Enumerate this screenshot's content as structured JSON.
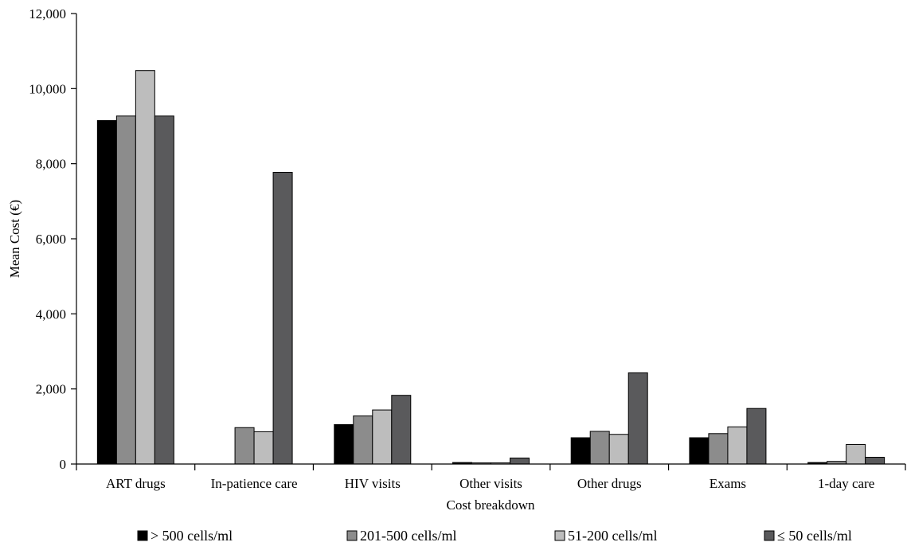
{
  "chart_data": {
    "type": "bar",
    "xlabel": "Cost breakdown",
    "ylabel": "Mean Cost (€)",
    "ylim": [
      0,
      12000
    ],
    "yticks": [
      0,
      2000,
      4000,
      6000,
      8000,
      10000,
      12000
    ],
    "ytick_labels": [
      "0",
      "2,000",
      "4,000",
      "6,000",
      "8,000",
      "10,000",
      "12,000"
    ],
    "grid": false,
    "legend_position": "bottom",
    "categories": [
      "ART drugs",
      "In-patience care",
      "HIV visits",
      "Other visits",
      "Other drugs",
      "Exams",
      "1-day care"
    ],
    "series": [
      {
        "name": "> 500 cells/ml",
        "color": "#000000",
        "values": [
          9150,
          0,
          1050,
          40,
          700,
          700,
          40
        ]
      },
      {
        "name": "201-500 cells/ml",
        "color": "#8c8c8c",
        "values": [
          9270,
          970,
          1280,
          30,
          870,
          810,
          70
        ]
      },
      {
        "name": "51-200 cells/ml",
        "color": "#bdbdbd",
        "values": [
          10480,
          860,
          1440,
          30,
          790,
          990,
          520
        ]
      },
      {
        "name": "≤ 50 cells/ml",
        "color": "#5a5a5c",
        "values": [
          9270,
          7770,
          1830,
          160,
          2430,
          1480,
          180
        ]
      }
    ]
  }
}
